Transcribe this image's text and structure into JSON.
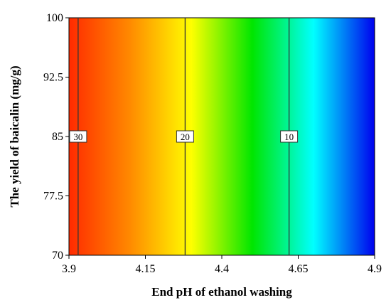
{
  "chart_data": {
    "type": "heatmap",
    "subtype": "contour",
    "title": "",
    "xlabel": "End pH of ethanol washing",
    "ylabel": "The yield of baicalin (mg/g)",
    "xlim": [
      3.9,
      4.9
    ],
    "ylim": [
      70,
      100
    ],
    "x_ticks": [
      "3.9",
      "4.15",
      "4.4",
      "4.65",
      "4.9"
    ],
    "y_ticks": [
      "70",
      "77.5",
      "85",
      "92.5",
      "100"
    ],
    "colormap": [
      "#ff2a00",
      "#ff8a00",
      "#ffff00",
      "#00e600",
      "#00ffff",
      "#0000ee"
    ],
    "contours": [
      {
        "level": "30",
        "x": 3.93,
        "label_y": 85
      },
      {
        "level": "20",
        "x": 4.28,
        "label_y": 85
      },
      {
        "level": "10",
        "x": 4.62,
        "label_y": 85
      }
    ],
    "grid": false,
    "legend": "none"
  }
}
